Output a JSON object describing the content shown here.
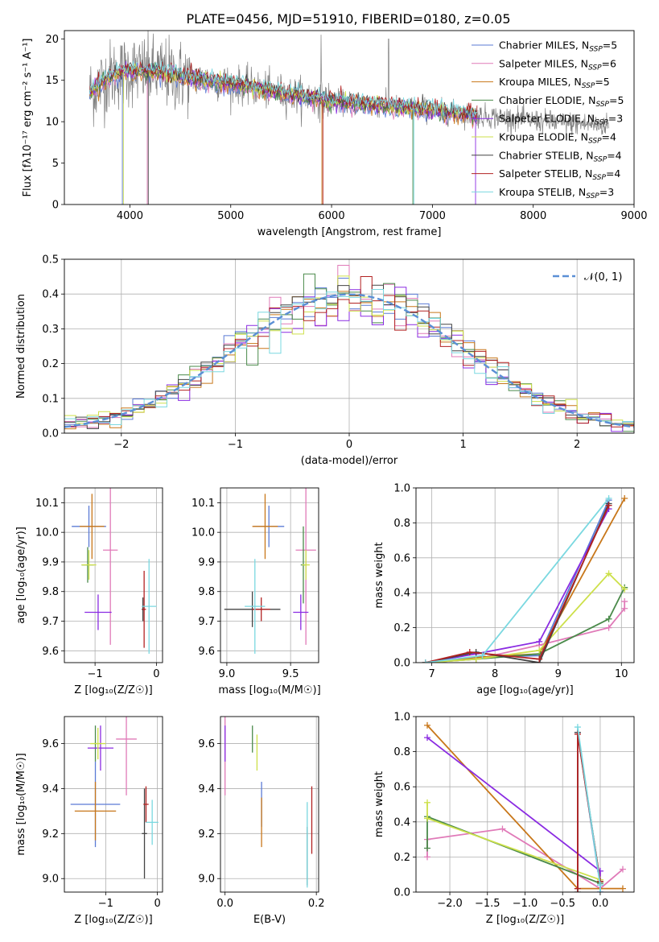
{
  "title": "PLATE=0456, MJD=51910, FIBERID=0180, z=0.05",
  "colors": [
    "#5b7bd5",
    "#e07ab8",
    "#c8771a",
    "#4a8a4a",
    "#8a2be2",
    "#cde04a",
    "#444444",
    "#b22222",
    "#7ad8e0"
  ],
  "chart_data": [
    {
      "id": "spectrum",
      "type": "line",
      "xlabel": "wavelength [Angstrom, rest frame]",
      "ylabel": "Flux [fλ10⁻¹⁷ erg cm⁻² s⁻¹ A⁻¹]",
      "xlim": [
        3350,
        9000
      ],
      "ylim": [
        0,
        21
      ],
      "xticks": [
        4000,
        5000,
        6000,
        7000,
        8000,
        9000
      ],
      "yticks": [
        0,
        5,
        10,
        15,
        20
      ],
      "grid": false,
      "legend": "top-right",
      "legend_entries": [
        "Chabrier MILES, N_SSP=5",
        "Salpeter MILES, N_SSP=6",
        "Kroupa MILES, N_SSP=5",
        "Chabrier ELODIE, N_SSP=5",
        "Salpeter ELODIE, N_SSP=3",
        "Kroupa ELODIE, N_SSP=4",
        "Chabrier STELIB, N_SSP=4",
        "Salpeter STELIB, N_SSP=4",
        "Kroupa STELIB, N_SSP=3"
      ],
      "continuum": {
        "x": [
          3600,
          3800,
          4000,
          4300,
          4600,
          5000,
          5500,
          6000,
          6500,
          7000,
          7400,
          7800,
          8200,
          8700
        ],
        "y": [
          13.5,
          15.5,
          16.2,
          15.9,
          15.3,
          14.6,
          13.5,
          12.5,
          11.9,
          11.4,
          10.8,
          10.4,
          9.9,
          9.6
        ]
      },
      "data_range": [
        3600,
        8750
      ],
      "model_range": [
        3600,
        7450
      ]
    },
    {
      "id": "residuals",
      "type": "histogram",
      "xlabel": "(data-model)/error",
      "ylabel": "Normed distribution",
      "xlim": [
        -2.5,
        2.5
      ],
      "ylim": [
        0,
        0.5
      ],
      "xticks": [
        -2,
        -1,
        0,
        1,
        2
      ],
      "yticks": [
        0.0,
        0.1,
        0.2,
        0.3,
        0.4,
        0.5
      ],
      "grid": true,
      "legend": "top-right",
      "legend_label": "𝒩(0, 1)",
      "bin_width": 0.1
    },
    {
      "id": "age-vs-Z",
      "type": "errorbar",
      "xlabel": "Z [log₁₀(Z/Z☉)]",
      "ylabel": "age  [log₁₀(age/yr)]",
      "xlim": [
        -1.5,
        0.1
      ],
      "ylim": [
        9.56,
        10.15
      ],
      "xticks": [
        -1,
        0
      ],
      "yticks": [
        9.6,
        9.7,
        9.8,
        9.9,
        10.0,
        10.1
      ],
      "points": [
        {
          "x": -1.1,
          "y": 10.02,
          "xerr": 0.28,
          "yerr": 0.07,
          "c": 0
        },
        {
          "x": -0.75,
          "y": 9.94,
          "xerr": 0.12,
          "yerr": 0.32,
          "c": 1
        },
        {
          "x": -1.05,
          "y": 10.02,
          "xerr": 0.2,
          "yerr": 0.11,
          "c": 2
        },
        {
          "x": -1.12,
          "y": 9.89,
          "xerr": 0.1,
          "yerr": 0.06,
          "c": 3
        },
        {
          "x": -0.95,
          "y": 9.73,
          "xerr": 0.22,
          "yerr": 0.06,
          "c": 4
        },
        {
          "x": -1.1,
          "y": 9.89,
          "xerr": 0.12,
          "yerr": 0.05,
          "c": 5
        },
        {
          "x": -0.22,
          "y": 9.74,
          "xerr": 0.02,
          "yerr": 0.04,
          "c": 6
        },
        {
          "x": -0.2,
          "y": 9.74,
          "xerr": 0.03,
          "yerr": 0.13,
          "c": 7
        },
        {
          "x": -0.12,
          "y": 9.75,
          "xerr": 0.12,
          "yerr": 0.16,
          "c": 8
        }
      ]
    },
    {
      "id": "age-vs-mass",
      "type": "errorbar",
      "xlabel": "mass [log₁₀(M/M☉)]",
      "ylabel": "",
      "xlim": [
        8.95,
        9.72
      ],
      "ylim": [
        9.56,
        10.15
      ],
      "xticks": [
        9.0,
        9.5
      ],
      "yticks": [
        9.6,
        9.7,
        9.8,
        9.9,
        10.0,
        10.1
      ],
      "points": [
        {
          "x": 9.33,
          "y": 10.02,
          "xerr": 0.12,
          "yerr": 0.07,
          "c": 0
        },
        {
          "x": 9.62,
          "y": 9.94,
          "xerr": 0.08,
          "yerr": 0.32,
          "c": 1
        },
        {
          "x": 9.3,
          "y": 10.02,
          "xerr": 0.1,
          "yerr": 0.11,
          "c": 2
        },
        {
          "x": 9.6,
          "y": 9.89,
          "xerr": 0.02,
          "yerr": 0.13,
          "c": 3
        },
        {
          "x": 9.58,
          "y": 9.73,
          "xerr": 0.06,
          "yerr": 0.06,
          "c": 4
        },
        {
          "x": 9.62,
          "y": 9.89,
          "xerr": 0.03,
          "yerr": 0.05,
          "c": 5
        },
        {
          "x": 9.2,
          "y": 9.74,
          "xerr": 0.22,
          "yerr": 0.06,
          "c": 6
        },
        {
          "x": 9.27,
          "y": 9.74,
          "xerr": 0.07,
          "yerr": 0.04,
          "c": 7
        },
        {
          "x": 9.22,
          "y": 9.75,
          "xerr": 0.08,
          "yerr": 0.16,
          "c": 8
        }
      ]
    },
    {
      "id": "mw-vs-age",
      "type": "line",
      "xlabel": "age  [log₁₀(age/yr)]",
      "ylabel": "mass weight",
      "xlim": [
        6.75,
        10.2
      ],
      "ylim": [
        0,
        1
      ],
      "xticks": [
        7,
        8,
        9,
        10
      ],
      "yticks": [
        0.0,
        0.2,
        0.4,
        0.6,
        0.8,
        1.0
      ],
      "grid": true,
      "series": [
        {
          "c": 0,
          "x": [
            6.9,
            7.7,
            8.7,
            9.8
          ],
          "y": [
            0.0,
            0.03,
            0.04,
            0.93
          ]
        },
        {
          "c": 1,
          "x": [
            6.9,
            7.7,
            8.7,
            9.8,
            10.05,
            10.05
          ],
          "y": [
            0.0,
            0.02,
            0.1,
            0.2,
            0.31,
            0.35
          ]
        },
        {
          "c": 2,
          "x": [
            6.9,
            7.7,
            8.7,
            10.05
          ],
          "y": [
            0.0,
            0.03,
            0.05,
            0.94
          ]
        },
        {
          "c": 3,
          "x": [
            6.9,
            7.7,
            8.7,
            9.8,
            10.05
          ],
          "y": [
            0.0,
            0.02,
            0.05,
            0.25,
            0.43
          ]
        },
        {
          "c": 4,
          "x": [
            6.9,
            7.7,
            8.7,
            9.8
          ],
          "y": [
            0.0,
            0.05,
            0.12,
            0.88
          ]
        },
        {
          "c": 5,
          "x": [
            6.9,
            7.7,
            8.7,
            9.8,
            10.05
          ],
          "y": [
            0.0,
            0.02,
            0.07,
            0.51,
            0.42
          ]
        },
        {
          "c": 6,
          "x": [
            6.9,
            7.7,
            8.7,
            9.8
          ],
          "y": [
            0.0,
            0.06,
            0.0,
            0.91
          ]
        },
        {
          "c": 7,
          "x": [
            6.9,
            7.6,
            8.7,
            9.8
          ],
          "y": [
            0.0,
            0.06,
            0.02,
            0.9
          ]
        },
        {
          "c": 8,
          "x": [
            6.9,
            7.8,
            9.8
          ],
          "y": [
            0.0,
            0.04,
            0.94
          ]
        }
      ]
    },
    {
      "id": "mass-vs-Z",
      "type": "errorbar",
      "xlabel": "Z [log₁₀(Z/Z☉)]",
      "ylabel": "mass [log₁₀(M/M☉)]",
      "xlim": [
        -1.8,
        0.1
      ],
      "ylim": [
        8.94,
        9.72
      ],
      "xticks": [
        -1,
        0
      ],
      "yticks": [
        9.0,
        9.2,
        9.4,
        9.6
      ],
      "points": [
        {
          "x": -1.2,
          "y": 9.33,
          "xerr": 0.48,
          "yerr": 0.19,
          "c": 0
        },
        {
          "x": -0.6,
          "y": 9.62,
          "xerr": 0.2,
          "yerr": 0.25,
          "c": 1
        },
        {
          "x": -1.2,
          "y": 9.3,
          "xerr": 0.4,
          "yerr": 0.13,
          "c": 2
        },
        {
          "x": -1.2,
          "y": 9.6,
          "xerr": 0.02,
          "yerr": 0.08,
          "c": 3
        },
        {
          "x": -1.1,
          "y": 9.58,
          "xerr": 0.25,
          "yerr": 0.1,
          "c": 4
        },
        {
          "x": -1.15,
          "y": 9.6,
          "xerr": 0.15,
          "yerr": 0.07,
          "c": 5
        },
        {
          "x": -0.25,
          "y": 9.2,
          "xerr": 0.05,
          "yerr": 0.2,
          "c": 6
        },
        {
          "x": -0.22,
          "y": 9.33,
          "xerr": 0.05,
          "yerr": 0.08,
          "c": 7
        },
        {
          "x": -0.1,
          "y": 9.25,
          "xerr": 0.12,
          "yerr": 0.1,
          "c": 8
        }
      ]
    },
    {
      "id": "mass-vs-ebv",
      "type": "errorbar",
      "xlabel": "E(B-V)",
      "ylabel": "",
      "xlim": [
        -0.01,
        0.205
      ],
      "ylim": [
        8.94,
        9.72
      ],
      "xticks": [
        0.0,
        0.2
      ],
      "yticks": [
        9.0,
        9.2,
        9.4,
        9.6
      ],
      "points": [
        {
          "x": 0.08,
          "y": 9.33,
          "xerr": 0,
          "yerr": 0.1,
          "c": 0
        },
        {
          "x": 0.0,
          "y": 9.55,
          "xerr": 0,
          "yerr": 0.18,
          "c": 1
        },
        {
          "x": 0.08,
          "y": 9.25,
          "xerr": 0,
          "yerr": 0.11,
          "c": 2
        },
        {
          "x": 0.06,
          "y": 9.62,
          "xerr": 0,
          "yerr": 0.06,
          "c": 3
        },
        {
          "x": 0.0,
          "y": 9.6,
          "xerr": 0,
          "yerr": 0.08,
          "c": 4
        },
        {
          "x": 0.07,
          "y": 9.56,
          "xerr": 0,
          "yerr": 0.08,
          "c": 5
        },
        {
          "x": 0.18,
          "y": 9.1,
          "xerr": 0,
          "yerr": 0.13,
          "c": 6
        },
        {
          "x": 0.19,
          "y": 9.26,
          "xerr": 0,
          "yerr": 0.15,
          "c": 7
        },
        {
          "x": 0.18,
          "y": 9.15,
          "xerr": 0,
          "yerr": 0.19,
          "c": 8
        }
      ]
    },
    {
      "id": "mw-vs-Z",
      "type": "line",
      "xlabel": "Z [log₁₀(Z/Z☉)]",
      "ylabel": "mass weight",
      "xlim": [
        -2.45,
        0.45
      ],
      "ylim": [
        0,
        1
      ],
      "xticks": [
        -2.0,
        -1.5,
        -1.0,
        -0.5,
        0.0
      ],
      "yticks": [
        0.0,
        0.2,
        0.4,
        0.6,
        0.8,
        1.0
      ],
      "grid": true,
      "series": [
        {
          "c": 0,
          "x": [
            -0.3,
            -0.3,
            0.0,
            0.0
          ],
          "y": [
            0.02,
            0.91,
            0.04,
            0.0
          ]
        },
        {
          "c": 1,
          "x": [
            -2.3,
            -2.3,
            -1.3,
            0.0,
            0.3
          ],
          "y": [
            0.2,
            0.3,
            0.36,
            0.02,
            0.13
          ]
        },
        {
          "c": 2,
          "x": [
            -2.3,
            -0.3,
            0.3
          ],
          "y": [
            0.95,
            0.02,
            0.02
          ]
        },
        {
          "c": 3,
          "x": [
            -2.3,
            -2.3,
            0.0
          ],
          "y": [
            0.25,
            0.43,
            0.05
          ]
        },
        {
          "c": 4,
          "x": [
            -2.3,
            0.0,
            0.0
          ],
          "y": [
            0.88,
            0.12,
            0.0
          ]
        },
        {
          "c": 5,
          "x": [
            -2.3,
            -2.3,
            0.0
          ],
          "y": [
            0.51,
            0.42,
            0.07
          ]
        },
        {
          "c": 6,
          "x": [
            -0.3,
            -0.3,
            0.0
          ],
          "y": [
            0.0,
            0.91,
            0.06
          ]
        },
        {
          "c": 7,
          "x": [
            -0.3,
            -0.3,
            0.0
          ],
          "y": [
            0.02,
            0.9,
            0.06
          ]
        },
        {
          "c": 8,
          "x": [
            -0.3,
            0.0,
            0.0
          ],
          "y": [
            0.94,
            0.04,
            0.0
          ]
        }
      ]
    }
  ]
}
